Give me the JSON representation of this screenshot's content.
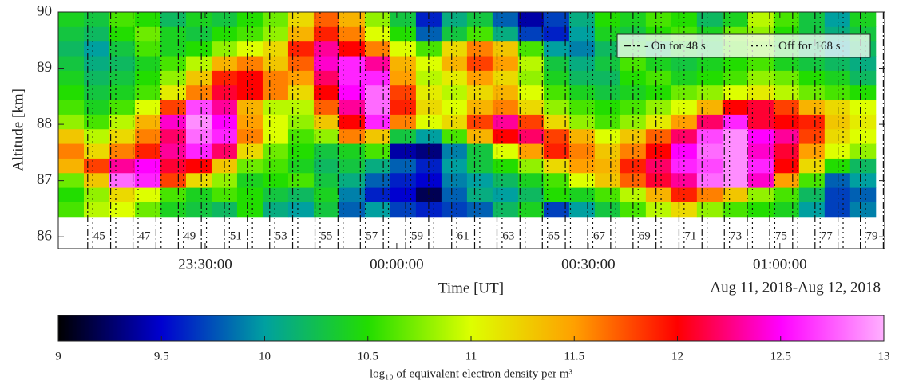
{
  "chart_data": {
    "type": "heatmap",
    "xlabel": "Time [UT]",
    "ylabel": "Altitude [km]",
    "date_label": "Aug 11, 2018-Aug 12, 2018",
    "xlim": [
      7,
      136.4
    ],
    "xticks": [
      {
        "value": 30,
        "label": "23:30:00"
      },
      {
        "value": 60,
        "label": "00:00:00"
      },
      {
        "value": 90,
        "label": "00:30:00"
      },
      {
        "value": 120,
        "label": "01:00:00"
      }
    ],
    "ylim": [
      85.79,
      90
    ],
    "yticks": [
      86,
      87,
      88,
      89,
      90
    ],
    "x": [
      9,
      13,
      17,
      21,
      25,
      29,
      33,
      37,
      41,
      45,
      49,
      53,
      57,
      61,
      65,
      69,
      73,
      77,
      81,
      85,
      89,
      93,
      97,
      101,
      105,
      109,
      113,
      117,
      121,
      125,
      129,
      133
    ],
    "y": [
      86.49,
      86.75,
      87.01,
      87.27,
      87.53,
      87.79,
      88.05,
      88.31,
      88.57,
      88.83,
      89.09,
      89.35,
      89.61,
      89.87
    ],
    "z": [
      [
        10.6,
        10.9,
        11.0,
        10.7,
        10.4,
        10.3,
        10.2,
        10.5,
        10.1,
        10.0,
        10.3,
        9.8,
        10.0,
        9.7,
        9.6,
        9.7,
        9.8,
        10.2,
        10.4,
        9.7,
        10.0,
        10.3,
        10.6,
        10.9,
        11.2,
        10.8,
        10.6,
        10.5,
        10.4,
        10.0,
        9.7,
        9.9
      ],
      [
        10.5,
        10.8,
        11.2,
        11.0,
        10.6,
        10.4,
        10.6,
        10.5,
        10.3,
        10.2,
        10.4,
        9.9,
        9.6,
        9.5,
        9.2,
        9.8,
        10.1,
        10.0,
        10.2,
        10.5,
        10.4,
        10.6,
        10.9,
        11.4,
        11.9,
        11.6,
        11.3,
        10.8,
        10.6,
        10.2,
        9.7,
        9.8
      ],
      [
        10.7,
        11.3,
        12.8,
        12.6,
        11.8,
        11.2,
        10.8,
        10.4,
        10.5,
        10.6,
        10.3,
        10.1,
        9.8,
        9.6,
        9.5,
        9.9,
        10.0,
        10.2,
        10.4,
        10.6,
        11.0,
        11.3,
        11.7,
        12.1,
        12.3,
        12.8,
        12.9,
        12.4,
        11.5,
        10.6,
        9.8,
        10.0
      ],
      [
        11.4,
        11.8,
        12.3,
        12.5,
        12.1,
        12.0,
        11.3,
        10.7,
        10.6,
        10.4,
        10.2,
        10.3,
        10.1,
        9.8,
        9.6,
        10.0,
        10.3,
        10.5,
        10.8,
        11.2,
        11.5,
        11.4,
        11.9,
        12.2,
        12.6,
        12.7,
        12.9,
        12.6,
        12.0,
        11.2,
        10.5,
        10.2
      ],
      [
        11.6,
        11.2,
        11.6,
        11.9,
        12.3,
        12.6,
        12.2,
        11.2,
        10.7,
        10.5,
        10.3,
        10.4,
        10.6,
        9.4,
        9.3,
        9.9,
        10.3,
        11.0,
        11.5,
        11.9,
        11.6,
        11.3,
        11.6,
        12.0,
        12.5,
        12.8,
        12.9,
        12.4,
        12.1,
        11.5,
        11.0,
        10.8
      ],
      [
        11.3,
        10.9,
        11.2,
        11.6,
        12.2,
        12.8,
        12.6,
        11.6,
        11.0,
        10.6,
        10.8,
        11.6,
        11.3,
        10.3,
        10.0,
        10.6,
        11.4,
        12.0,
        12.2,
        11.8,
        11.4,
        11.0,
        11.3,
        11.7,
        12.2,
        12.7,
        12.9,
        12.5,
        12.3,
        11.8,
        11.2,
        11.0
      ],
      [
        10.8,
        10.6,
        10.9,
        11.4,
        12.4,
        12.9,
        12.5,
        11.5,
        11.0,
        10.8,
        11.3,
        12.0,
        12.6,
        11.6,
        11.0,
        11.2,
        11.8,
        12.3,
        11.8,
        11.2,
        10.8,
        10.6,
        10.8,
        11.1,
        11.5,
        12.2,
        12.6,
        12.1,
        12.0,
        11.9,
        11.3,
        11.1
      ],
      [
        10.6,
        10.4,
        10.6,
        11.0,
        11.8,
        12.7,
        12.3,
        11.4,
        10.9,
        10.9,
        11.7,
        12.3,
        12.8,
        11.9,
        11.2,
        11.0,
        11.4,
        11.6,
        11.2,
        10.8,
        10.6,
        10.5,
        10.6,
        10.8,
        11.0,
        11.4,
        12.0,
        12.1,
        11.8,
        11.4,
        11.2,
        11.0
      ],
      [
        10.5,
        10.3,
        10.4,
        10.6,
        11.1,
        11.6,
        12.1,
        12.0,
        11.6,
        11.2,
        12.0,
        12.5,
        12.8,
        11.8,
        11.1,
        10.9,
        11.2,
        11.4,
        11.0,
        10.6,
        10.4,
        10.3,
        10.4,
        10.5,
        10.7,
        10.8,
        11.0,
        11.1,
        10.9,
        10.7,
        10.6,
        10.5
      ],
      [
        10.4,
        10.2,
        10.3,
        10.5,
        10.8,
        11.3,
        11.9,
        12.0,
        11.6,
        11.5,
        12.2,
        12.6,
        12.6,
        11.5,
        10.9,
        11.1,
        11.5,
        11.2,
        10.8,
        10.4,
        10.2,
        10.2,
        10.5,
        10.6,
        10.4,
        10.5,
        10.6,
        10.8,
        10.7,
        10.5,
        10.4,
        10.2
      ],
      [
        10.3,
        10.1,
        10.2,
        10.4,
        10.6,
        10.9,
        11.4,
        11.6,
        11.3,
        11.7,
        12.4,
        12.6,
        12.3,
        11.4,
        11.0,
        11.4,
        11.8,
        11.5,
        10.9,
        10.3,
        10.1,
        10.3,
        10.6,
        10.4,
        10.3,
        10.4,
        10.5,
        10.6,
        10.4,
        10.3,
        10.2,
        10.1
      ],
      [
        10.2,
        10.0,
        10.3,
        10.6,
        10.4,
        10.5,
        10.8,
        11.0,
        11.2,
        11.9,
        12.3,
        12.0,
        11.6,
        11.0,
        10.6,
        11.2,
        11.6,
        11.3,
        10.6,
        10.0,
        9.9,
        10.2,
        10.4,
        10.2,
        10.4,
        10.3,
        10.6,
        10.7,
        10.4,
        10.2,
        10.0,
        10.2
      ],
      [
        10.3,
        10.2,
        10.5,
        10.7,
        10.4,
        10.3,
        10.5,
        10.6,
        10.8,
        11.4,
        11.9,
        11.6,
        11.0,
        10.5,
        9.8,
        10.3,
        10.6,
        10.1,
        9.7,
        9.6,
        10.0,
        10.4,
        10.3,
        10.5,
        10.6,
        10.4,
        10.7,
        10.8,
        10.5,
        10.3,
        10.1,
        10.3
      ],
      [
        10.4,
        10.3,
        10.6,
        10.5,
        10.2,
        10.4,
        10.3,
        10.5,
        10.7,
        11.2,
        11.7,
        11.4,
        10.8,
        10.3,
        9.6,
        10.1,
        10.3,
        9.8,
        9.4,
        9.7,
        10.1,
        10.5,
        10.4,
        10.6,
        10.5,
        10.2,
        10.4,
        10.9,
        10.6,
        10.3,
        10.0,
        10.4
      ]
    ],
    "colormap": [
      "#000000",
      "#0000d0",
      "#00a0a0",
      "#22dd00",
      "#ddff00",
      "#ffa000",
      "#ff0000",
      "#ff00ff",
      "#ffb0ff"
    ],
    "clim": [
      9,
      13
    ],
    "cticks": [
      9,
      9.5,
      10,
      10.5,
      11,
      11.5,
      12,
      12.5,
      13
    ],
    "colorbar_label": "log₁₀ of equivalent electron density per m³",
    "legend": "upper right",
    "legend_items": [
      {
        "label": "- On for 48 s",
        "style": "dashdot"
      },
      {
        "label": "Off for 168 s",
        "style": "dotted"
      }
    ],
    "annotations": [
      {
        "text": "45",
        "x": 13.4
      },
      {
        "text": "47",
        "x": 20.5
      },
      {
        "text": "49",
        "x": 27.6
      },
      {
        "text": "51",
        "x": 34.8
      },
      {
        "text": "53",
        "x": 41.9
      },
      {
        "text": "55",
        "x": 49.0
      },
      {
        "text": "57",
        "x": 56.1
      },
      {
        "text": "59",
        "x": 63.2
      },
      {
        "text": "61",
        "x": 70.4
      },
      {
        "text": "63",
        "x": 77.5
      },
      {
        "text": "65",
        "x": 84.6
      },
      {
        "text": "67",
        "x": 91.7
      },
      {
        "text": "69",
        "x": 98.8
      },
      {
        "text": "71",
        "x": 106.0
      },
      {
        "text": "73",
        "x": 113.1
      },
      {
        "text": "75",
        "x": 120.2
      },
      {
        "text": "77",
        "x": 127.3
      },
      {
        "text": "79",
        "x": 134.4
      }
    ]
  }
}
